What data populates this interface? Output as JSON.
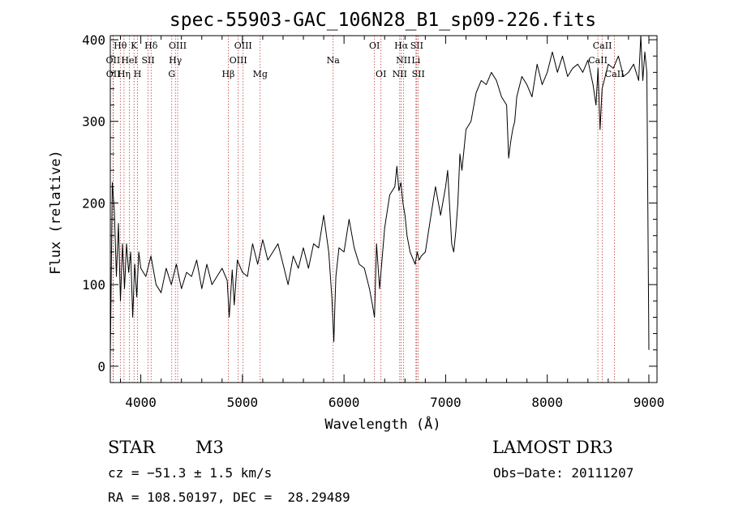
{
  "chart_data": {
    "type": "line",
    "title": "spec-55903-GAC_106N28_B1_sp09-226.fits",
    "xlabel": "Wavelength (Å)",
    "ylabel": "Flux (relative)",
    "xlim": [
      3700,
      9080
    ],
    "ylim": [
      -20,
      405
    ],
    "x_ticks": [
      4000,
      5000,
      6000,
      7000,
      8000,
      9000
    ],
    "y_ticks": [
      0,
      100,
      200,
      300,
      400
    ],
    "grid": false,
    "series": [
      {
        "color": "#000000",
        "x": [
          3700,
          3720,
          3740,
          3760,
          3780,
          3800,
          3820,
          3840,
          3860,
          3880,
          3900,
          3920,
          3940,
          3960,
          3980,
          4000,
          4050,
          4100,
          4150,
          4200,
          4250,
          4300,
          4350,
          4400,
          4450,
          4500,
          4550,
          4600,
          4650,
          4700,
          4750,
          4800,
          4850,
          4870,
          4900,
          4920,
          4950,
          5000,
          5050,
          5100,
          5150,
          5200,
          5250,
          5300,
          5350,
          5400,
          5450,
          5500,
          5550,
          5600,
          5650,
          5700,
          5750,
          5800,
          5850,
          5880,
          5900,
          5910,
          5920,
          5950,
          6000,
          6050,
          6100,
          6150,
          6200,
          6250,
          6280,
          6300,
          6320,
          6350,
          6400,
          6450,
          6500,
          6520,
          6540,
          6560,
          6580,
          6600,
          6620,
          6650,
          6700,
          6720,
          6740,
          6760,
          6800,
          6850,
          6900,
          6950,
          7000,
          7020,
          7040,
          7060,
          7080,
          7100,
          7120,
          7140,
          7160,
          7200,
          7250,
          7300,
          7350,
          7400,
          7450,
          7500,
          7550,
          7600,
          7620,
          7640,
          7660,
          7680,
          7700,
          7750,
          7800,
          7850,
          7900,
          7950,
          8000,
          8050,
          8100,
          8150,
          8200,
          8250,
          8300,
          8350,
          8400,
          8450,
          8480,
          8500,
          8520,
          8540,
          8560,
          8600,
          8650,
          8700,
          8750,
          8800,
          8850,
          8900,
          8920,
          8940,
          8960,
          8980,
          9000
        ],
        "y": [
          10,
          225,
          190,
          110,
          175,
          80,
          150,
          95,
          150,
          115,
          140,
          60,
          125,
          85,
          140,
          120,
          110,
          135,
          100,
          90,
          120,
          100,
          125,
          95,
          115,
          110,
          130,
          95,
          125,
          100,
          110,
          120,
          105,
          60,
          118,
          75,
          130,
          115,
          110,
          150,
          125,
          155,
          130,
          140,
          150,
          125,
          100,
          135,
          120,
          145,
          120,
          150,
          145,
          185,
          140,
          85,
          30,
          75,
          110,
          145,
          140,
          180,
          145,
          125,
          120,
          95,
          75,
          60,
          150,
          95,
          170,
          210,
          220,
          245,
          215,
          225,
          200,
          185,
          160,
          140,
          125,
          140,
          130,
          135,
          140,
          180,
          220,
          185,
          220,
          240,
          195,
          150,
          140,
          165,
          200,
          260,
          240,
          290,
          300,
          335,
          350,
          345,
          360,
          350,
          330,
          320,
          255,
          275,
          290,
          300,
          330,
          355,
          345,
          330,
          370,
          345,
          360,
          385,
          360,
          380,
          355,
          365,
          370,
          360,
          375,
          345,
          320,
          365,
          290,
          340,
          350,
          370,
          365,
          380,
          355,
          360,
          370,
          350,
          405,
          350,
          385,
          360,
          20
        ]
      }
    ],
    "line_markers": [
      {
        "label": "Hθ",
        "x": 3798,
        "row": 0
      },
      {
        "label": "K",
        "x": 3933,
        "row": 0
      },
      {
        "label": "Hδ",
        "x": 4101,
        "row": 0
      },
      {
        "label": "OIII",
        "x": 4363,
        "row": 0
      },
      {
        "label": "OIII",
        "x": 5007,
        "row": 0
      },
      {
        "label": "OI",
        "x": 6300,
        "row": 0
      },
      {
        "label": "Hα",
        "x": 6563,
        "row": 0
      },
      {
        "label": "SII",
        "x": 6716,
        "row": 0
      },
      {
        "label": "CaII",
        "x": 8542,
        "row": 0
      },
      {
        "label": "OII",
        "x": 3727,
        "row": 1
      },
      {
        "label": "HeI",
        "x": 3888,
        "row": 1
      },
      {
        "label": "SII",
        "x": 4072,
        "row": 1
      },
      {
        "label": "Hγ",
        "x": 4340,
        "row": 1
      },
      {
        "label": "OIII",
        "x": 4959,
        "row": 1
      },
      {
        "label": "Na",
        "x": 5893,
        "row": 1
      },
      {
        "label": "NII",
        "x": 6584,
        "row": 1
      },
      {
        "label": "Li",
        "x": 6708,
        "row": 1
      },
      {
        "label": "CaII",
        "x": 8498,
        "row": 1
      },
      {
        "label": "OII",
        "x": 3729,
        "row": 2
      },
      {
        "label": "Hη",
        "x": 3835,
        "row": 2
      },
      {
        "label": "H",
        "x": 3968,
        "row": 2
      },
      {
        "label": "G",
        "x": 4305,
        "row": 2
      },
      {
        "label": "Hβ",
        "x": 4861,
        "row": 2
      },
      {
        "label": "Mg",
        "x": 5175,
        "row": 2
      },
      {
        "label": "OI",
        "x": 6364,
        "row": 2
      },
      {
        "label": "NII",
        "x": 6548,
        "row": 2
      },
      {
        "label": "SII",
        "x": 6731,
        "row": 2
      },
      {
        "label": "CaII",
        "x": 8662,
        "row": 2
      }
    ]
  },
  "info": {
    "object_class": "STAR",
    "subclass": "M3",
    "survey": "LAMOST DR3",
    "cz": "cz = −51.3 ± 1.5 km/s",
    "obs_date": "Obs−Date: 20111207",
    "coords": "RA = 108.50197, DEC =  28.29489"
  }
}
